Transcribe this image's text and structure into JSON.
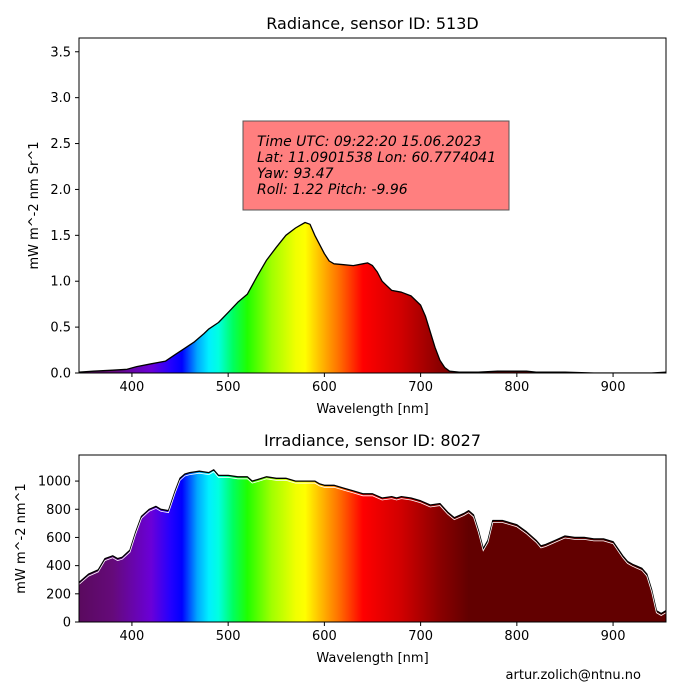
{
  "footer": "artur.zolich@ntnu.no",
  "chart_data": [
    {
      "type": "area",
      "title": "Radiance, sensor ID: 513D",
      "xlabel": "Wavelength [nm]",
      "ylabel": "mW m^-2 nm Sr^1",
      "xlim": [
        345,
        955
      ],
      "ylim": [
        0,
        3.65
      ],
      "xticks": [
        400,
        500,
        600,
        700,
        800,
        900
      ],
      "yticks": [
        0.0,
        0.5,
        1.0,
        1.5,
        2.0,
        2.5,
        3.0,
        3.5
      ],
      "fill": "spectral colormap by wavelength",
      "annotation": {
        "lines": [
          "Time UTC: 09:22:20 15.06.2023",
          "Lat: 11.0901538 Lon: 60.7774041",
          "Yaw: 93.47",
          "Roll: 1.22 Pitch: -9.96"
        ],
        "background": "#ff7f7f"
      },
      "x": [
        345,
        360,
        380,
        395,
        405,
        420,
        435,
        445,
        455,
        465,
        475,
        480,
        490,
        500,
        510,
        520,
        530,
        540,
        550,
        560,
        570,
        575,
        580,
        585,
        590,
        600,
        605,
        610,
        620,
        630,
        640,
        645,
        650,
        655,
        660,
        665,
        670,
        675,
        680,
        690,
        700,
        705,
        710,
        715,
        720,
        725,
        730,
        740,
        750,
        760,
        780,
        800,
        810,
        820,
        850,
        880,
        900,
        920,
        940,
        955
      ],
      "values": [
        0.01,
        0.02,
        0.03,
        0.04,
        0.07,
        0.1,
        0.13,
        0.2,
        0.27,
        0.34,
        0.43,
        0.48,
        0.55,
        0.66,
        0.77,
        0.86,
        1.05,
        1.23,
        1.37,
        1.5,
        1.58,
        1.61,
        1.64,
        1.62,
        1.5,
        1.3,
        1.22,
        1.19,
        1.18,
        1.17,
        1.19,
        1.2,
        1.17,
        1.1,
        1.0,
        0.95,
        0.9,
        0.89,
        0.88,
        0.84,
        0.74,
        0.62,
        0.45,
        0.28,
        0.14,
        0.06,
        0.02,
        0.01,
        0.01,
        0.01,
        0.02,
        0.02,
        0.02,
        0.01,
        0.01,
        0.0,
        0.0,
        0.0,
        0.0,
        0.01
      ]
    },
    {
      "type": "area",
      "title": "Irradiance, sensor ID: 8027",
      "xlabel": "Wavelength [nm]",
      "ylabel": "mW m^-2 nm^1",
      "xlim": [
        345,
        955
      ],
      "ylim": [
        0,
        1185
      ],
      "xticks": [
        400,
        500,
        600,
        700,
        800,
        900
      ],
      "yticks": [
        0,
        200,
        400,
        600,
        800,
        1000
      ],
      "fill": "spectral colormap by wavelength",
      "x": [
        345,
        355,
        365,
        372,
        380,
        385,
        390,
        398,
        404,
        410,
        418,
        425,
        430,
        438,
        445,
        450,
        455,
        460,
        470,
        480,
        485,
        490,
        500,
        510,
        520,
        525,
        530,
        540,
        550,
        560,
        570,
        580,
        590,
        595,
        600,
        610,
        620,
        630,
        640,
        650,
        660,
        670,
        675,
        680,
        690,
        700,
        710,
        720,
        728,
        735,
        745,
        750,
        755,
        760,
        765,
        770,
        775,
        785,
        790,
        800,
        810,
        820,
        825,
        830,
        840,
        850,
        860,
        870,
        880,
        890,
        900,
        910,
        915,
        920,
        930,
        935,
        940,
        945,
        950,
        955
      ],
      "values": [
        280,
        340,
        370,
        450,
        470,
        450,
        460,
        510,
        640,
        750,
        800,
        820,
        800,
        790,
        930,
        1020,
        1050,
        1060,
        1070,
        1060,
        1080,
        1040,
        1040,
        1030,
        1030,
        1000,
        1010,
        1030,
        1020,
        1020,
        1000,
        1000,
        1000,
        980,
        970,
        970,
        950,
        930,
        910,
        910,
        880,
        890,
        880,
        890,
        880,
        860,
        830,
        840,
        780,
        740,
        770,
        790,
        760,
        650,
        520,
        580,
        720,
        720,
        710,
        690,
        640,
        580,
        540,
        550,
        580,
        610,
        600,
        600,
        590,
        590,
        570,
        470,
        430,
        410,
        380,
        340,
        230,
        80,
        60,
        80
      ]
    }
  ]
}
